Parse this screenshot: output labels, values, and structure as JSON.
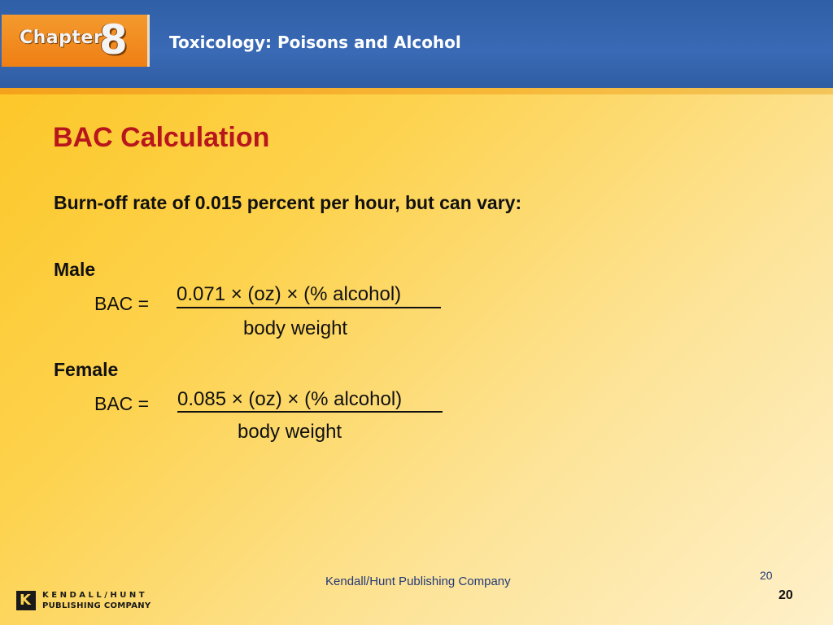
{
  "header": {
    "chapter_word": "Chapter",
    "chapter_number": "8",
    "title": "Toxicology: Poisons and Alcohol"
  },
  "slide": {
    "title": "BAC Calculation",
    "burn_off_text": "Burn-off rate of 0.015 percent per hour, but can vary:",
    "male": {
      "label": "Male",
      "bac_label": "BAC =",
      "numerator": "0.071 × (oz) × (% alcohol)",
      "denominator": "body weight"
    },
    "female": {
      "label": "Female",
      "bac_label": "BAC =",
      "numerator": "0.085 × (oz) × (% alcohol)",
      "denominator": "body weight"
    }
  },
  "footer": {
    "company": "Kendall/Hunt Publishing Company",
    "page_small": "20",
    "page_bold": "20",
    "logo_mark": "K",
    "logo_line1": "KENDALL/HUNT",
    "logo_line2": "PUBLISHING COMPANY"
  },
  "colors": {
    "header_blue": "#2f5fa6",
    "badge_orange": "#ef7f14",
    "title_red": "#b8161d",
    "background_yellow": "#fcc521"
  }
}
